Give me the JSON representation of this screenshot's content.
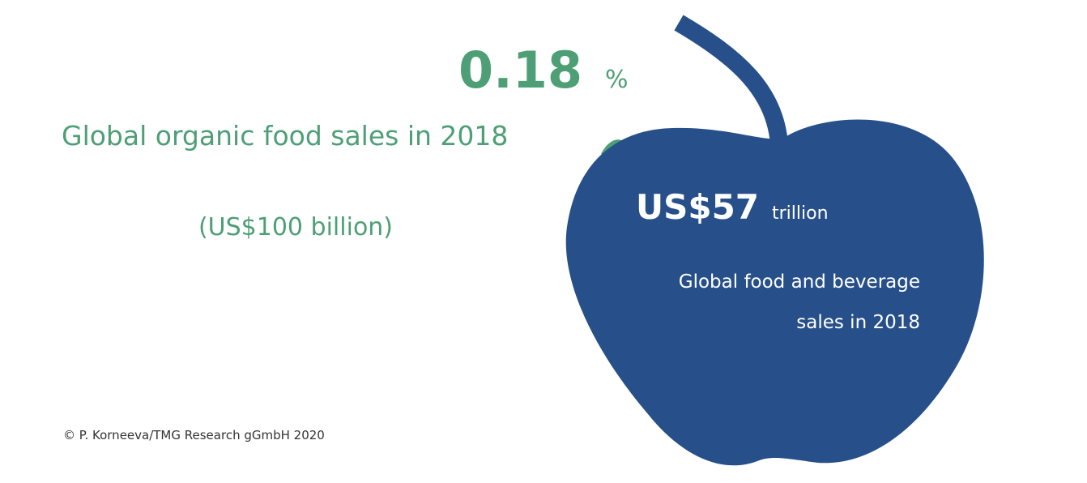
{
  "organic": {
    "value": "0.18",
    "unit": "%",
    "label": "Global organic food sales in 2018",
    "amount": "(US$100 billion)"
  },
  "total": {
    "value": "US$57",
    "unit": "trillion",
    "label_lines": [
      "Global food and beverage",
      "sales in 2018"
    ]
  },
  "credit": "© P. Korneeva/TMG Research gGmbH 2020"
}
